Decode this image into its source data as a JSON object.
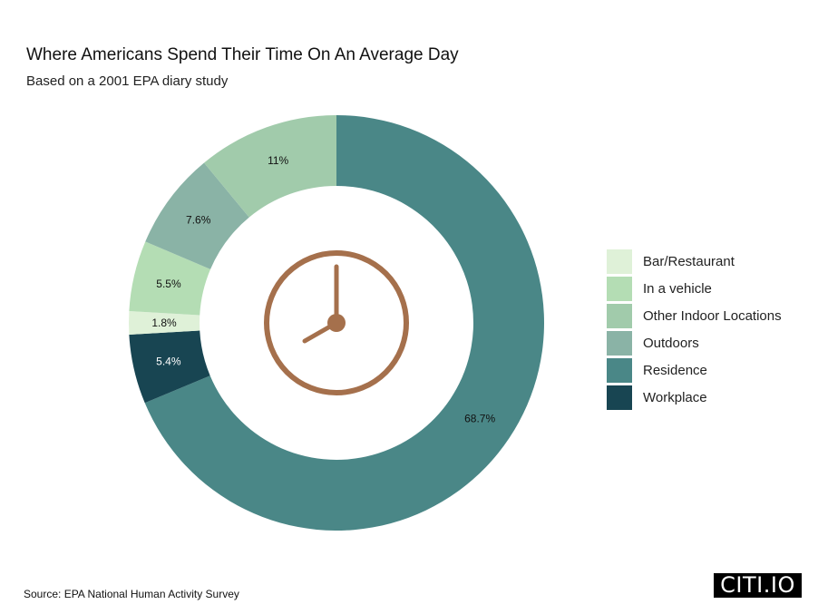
{
  "header": {
    "title": "Where Americans Spend Their Time On An Average Day",
    "subtitle": "Based on a 2001 EPA diary study"
  },
  "footer": {
    "source": "Source: EPA National Human Activity Survey",
    "logo": "CITI.IO"
  },
  "center_icon": "clock-icon",
  "colors": {
    "accent_icon": "#a5704c"
  },
  "chart_data": {
    "type": "pie",
    "variant": "donut",
    "title": "Where Americans Spend Their Time On An Average Day",
    "subtitle": "Based on a 2001 EPA diary study",
    "unit": "%",
    "legend_position": "right",
    "categories": [
      "Bar/Restaurant",
      "In a vehicle",
      "Other Indoor Locations",
      "Outdoors",
      "Residence",
      "Workplace"
    ],
    "values": [
      1.8,
      5.5,
      11,
      7.6,
      68.7,
      5.4
    ],
    "labels": [
      "1.8%",
      "5.5%",
      "11%",
      "7.6%",
      "68.7%",
      "5.4%"
    ],
    "colors": [
      "#dff1d8",
      "#b4ddb4",
      "#a1cbab",
      "#8ab3a6",
      "#4a8787",
      "#184552"
    ],
    "label_colors": [
      "#111111",
      "#111111",
      "#111111",
      "#111111",
      "#111111",
      "#ffffff"
    ],
    "draw_order": [
      "Residence",
      "Workplace",
      "Bar/Restaurant",
      "In a vehicle",
      "Outdoors",
      "Other Indoor Locations"
    ]
  }
}
